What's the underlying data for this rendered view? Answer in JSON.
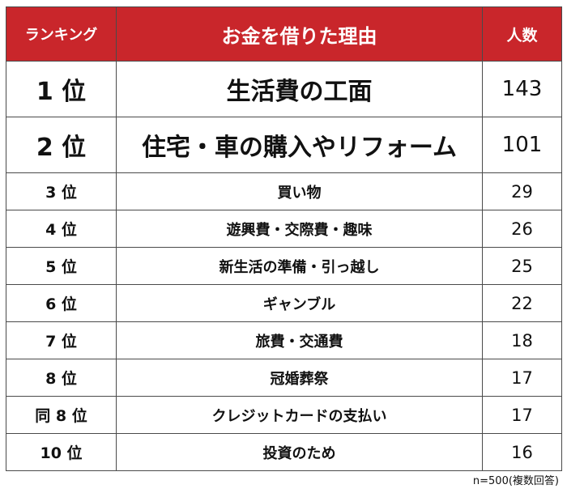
{
  "header": {
    "rank_label": "ランキング",
    "reason_label": "お金を借りた理由",
    "count_label": "人数"
  },
  "rows": [
    {
      "rank": "1 位",
      "reason": "生活費の工面",
      "count": "143"
    },
    {
      "rank": "2 位",
      "reason": "住宅・車の購入やリフォーム",
      "count": "101"
    },
    {
      "rank": "3 位",
      "reason": "買い物",
      "count": "29"
    },
    {
      "rank": "4 位",
      "reason": "遊興費・交際費・趣味",
      "count": "26"
    },
    {
      "rank": "5 位",
      "reason": "新生活の準備・引っ越し",
      "count": "25"
    },
    {
      "rank": "6 位",
      "reason": "ギャンブル",
      "count": "22"
    },
    {
      "rank": "7 位",
      "reason": "旅費・交通費",
      "count": "18"
    },
    {
      "rank": "8 位",
      "reason": "冠婚葬祭",
      "count": "17"
    },
    {
      "rank": "同 8 位",
      "reason": "クレジットカードの支払い",
      "count": "17"
    },
    {
      "rank": "10 位",
      "reason": "投資のため",
      "count": "16"
    }
  ],
  "footnote": "n=500(複数回答)",
  "colors": {
    "header_bg": "#c9262b",
    "header_text": "#ffffff",
    "border": "#4a4a4a"
  }
}
